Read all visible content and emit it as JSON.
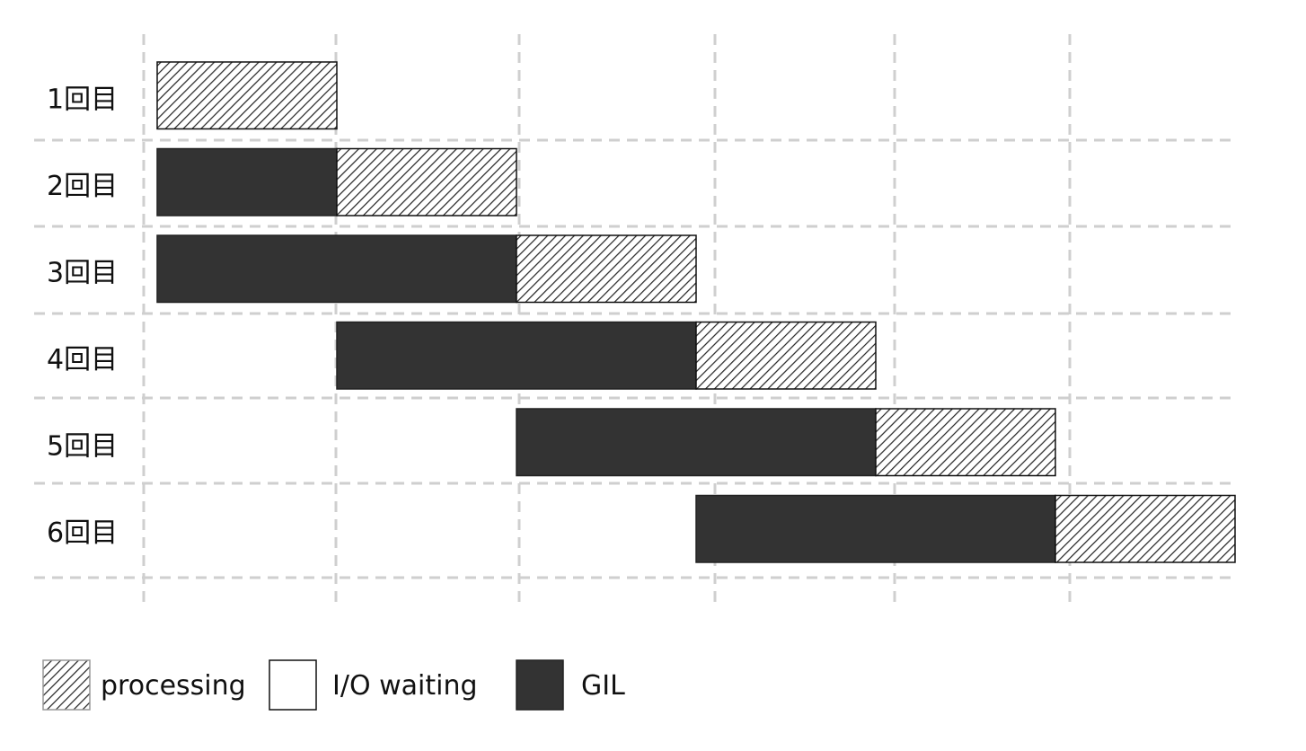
{
  "chart_data": {
    "type": "gantt",
    "rows": [
      "1回目",
      "2回目",
      "3回目",
      "4回目",
      "5回目",
      "6回目"
    ],
    "x_range": [
      0,
      6
    ],
    "x_gridlines": [
      0,
      1,
      2,
      3,
      4,
      5
    ],
    "grid": true,
    "segments": [
      {
        "row": 0,
        "kind": "processing",
        "start": 0,
        "end": 1
      },
      {
        "row": 1,
        "kind": "gil",
        "start": 0,
        "end": 1
      },
      {
        "row": 1,
        "kind": "processing",
        "start": 1,
        "end": 2
      },
      {
        "row": 2,
        "kind": "gil",
        "start": 0,
        "end": 2
      },
      {
        "row": 2,
        "kind": "processing",
        "start": 2,
        "end": 3
      },
      {
        "row": 3,
        "kind": "gil",
        "start": 1,
        "end": 3
      },
      {
        "row": 3,
        "kind": "processing",
        "start": 3,
        "end": 4
      },
      {
        "row": 4,
        "kind": "gil",
        "start": 2,
        "end": 4
      },
      {
        "row": 4,
        "kind": "processing",
        "start": 4,
        "end": 5
      },
      {
        "row": 5,
        "kind": "gil",
        "start": 3,
        "end": 5
      },
      {
        "row": 5,
        "kind": "processing",
        "start": 5,
        "end": 6
      }
    ],
    "legend": {
      "placement": "bottom",
      "items": [
        {
          "kind": "processing",
          "label": "processing"
        },
        {
          "kind": "io",
          "label": "I/O waiting"
        },
        {
          "kind": "gil",
          "label": "GIL"
        }
      ]
    },
    "colors": {
      "gil": "#333333",
      "io": "#ffffff",
      "processing_hatch": "#222222",
      "grid": "#cfcfcf"
    }
  }
}
